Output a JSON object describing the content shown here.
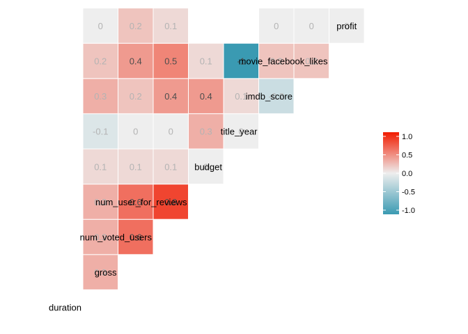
{
  "chart_data": {
    "type": "heatmap",
    "title": "",
    "variables": [
      "duration",
      "gross",
      "num_voted_users",
      "num_user_for_reviews",
      "budget",
      "title_year",
      "imdb_score",
      "movie_facebook_likes",
      "profit"
    ],
    "cells": [
      {
        "row": "gross",
        "col": "duration",
        "value": 0.3
      },
      {
        "row": "num_voted_users",
        "col": "duration",
        "value": 0.3
      },
      {
        "row": "num_user_for_reviews",
        "col": "duration",
        "value": 0.3
      },
      {
        "row": "budget",
        "col": "duration",
        "value": 0.1
      },
      {
        "row": "title_year",
        "col": "duration",
        "value": -0.1
      },
      {
        "row": "imdb_score",
        "col": "duration",
        "value": 0.3
      },
      {
        "row": "movie_facebook_likes",
        "col": "duration",
        "value": 0.2
      },
      {
        "row": "profit",
        "col": "duration",
        "value": 0
      },
      {
        "row": "num_voted_users",
        "col": "gross",
        "value": 0.6
      },
      {
        "row": "num_user_for_reviews",
        "col": "gross",
        "value": 0.6
      },
      {
        "row": "budget",
        "col": "gross",
        "value": 0.1
      },
      {
        "row": "title_year",
        "col": "gross",
        "value": 0
      },
      {
        "row": "imdb_score",
        "col": "gross",
        "value": 0.2
      },
      {
        "row": "movie_facebook_likes",
        "col": "gross",
        "value": 0.4
      },
      {
        "row": "profit",
        "col": "gross",
        "value": 0.2
      },
      {
        "row": "num_user_for_reviews",
        "col": "num_voted_users",
        "value": 0.8
      },
      {
        "row": "budget",
        "col": "num_voted_users",
        "value": 0.1
      },
      {
        "row": "title_year",
        "col": "num_voted_users",
        "value": 0
      },
      {
        "row": "imdb_score",
        "col": "num_voted_users",
        "value": 0.4
      },
      {
        "row": "movie_facebook_likes",
        "col": "num_voted_users",
        "value": 0.5
      },
      {
        "row": "profit",
        "col": "num_voted_users",
        "value": 0.1
      },
      {
        "row": "budget",
        "col": "num_user_for_reviews",
        "value": 0
      },
      {
        "row": "title_year",
        "col": "num_user_for_reviews",
        "value": 0.3
      },
      {
        "row": "imdb_score",
        "col": "num_user_for_reviews",
        "value": 0.4
      },
      {
        "row": "movie_facebook_likes",
        "col": "num_user_for_reviews",
        "value": 0.1
      },
      {
        "row": "title_year",
        "col": "budget",
        "value": 0
      },
      {
        "row": "imdb_score",
        "col": "budget",
        "value": 0.1
      },
      {
        "row": "movie_facebook_likes",
        "col": "budget",
        "value": -1
      },
      {
        "row": "imdb_score",
        "col": "title_year",
        "value": -0.2
      },
      {
        "row": "movie_facebook_likes",
        "col": "title_year",
        "value": 0.2
      },
      {
        "row": "profit",
        "col": "title_year",
        "value": 0
      },
      {
        "row": "movie_facebook_likes",
        "col": "imdb_score",
        "value": 0.2
      },
      {
        "row": "profit",
        "col": "imdb_score",
        "value": 0
      },
      {
        "row": "profit",
        "col": "movie_facebook_likes",
        "value": 0
      }
    ],
    "legend": {
      "position": "right",
      "ticks": [
        "1.0",
        "0.5",
        "0.0",
        "-0.5",
        "-1.0"
      ],
      "tick_values": [
        1.0,
        0.5,
        0.0,
        -0.5,
        -1.0
      ],
      "range": [
        -1,
        1
      ],
      "colors": {
        "low": "#3A9AB2",
        "mid": "#EEEEEE",
        "high": "#F11B00"
      }
    },
    "grid": false
  }
}
